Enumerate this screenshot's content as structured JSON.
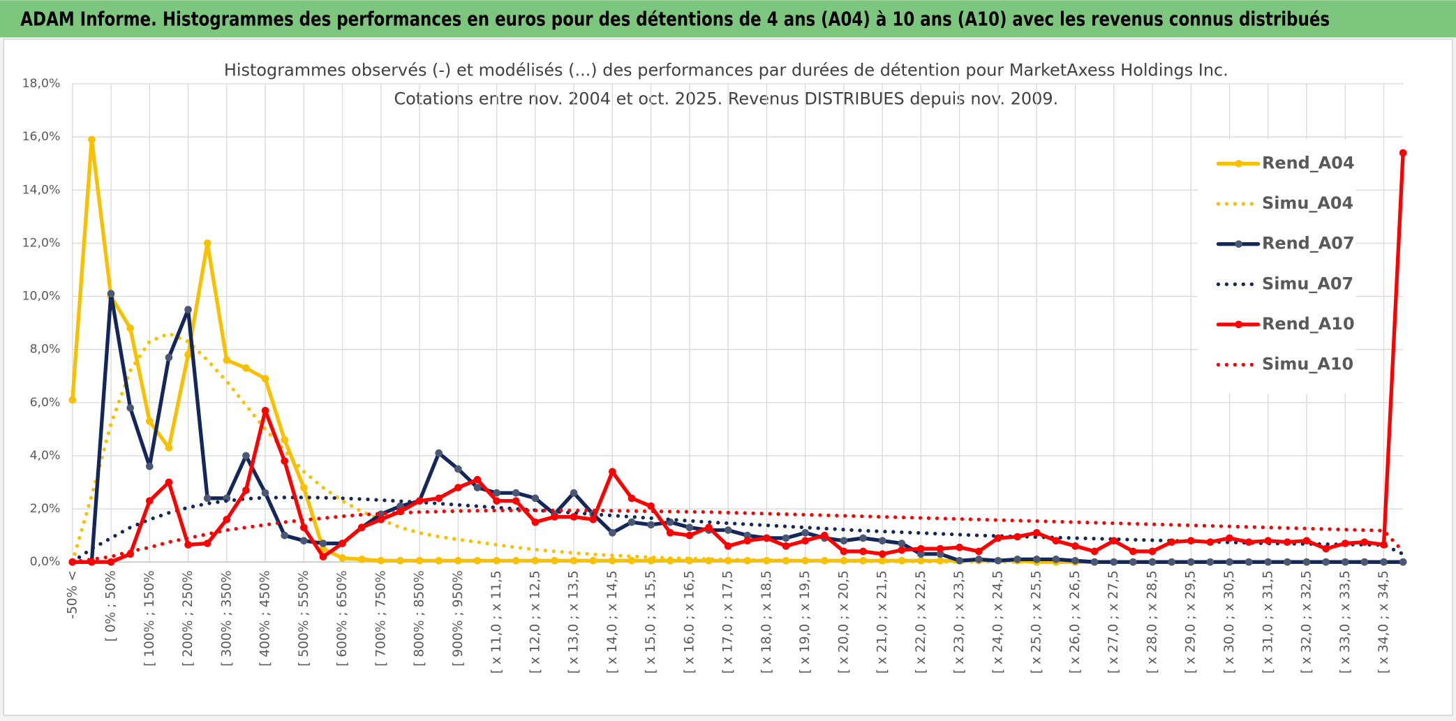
{
  "header": {
    "title": "ADAM Informe. Histogrammes des performances en euros pour des détentions de 4 ans (A04) à 10 ans (A10) avec les revenus connus distribués"
  },
  "chart_data": {
    "type": "line",
    "title": "Histogrammes observés (-) et modélisés (...) des performances par durées de détention pour MarketAxess Holdings Inc.",
    "subtitle": "Cotations entre nov. 2004 et oct. 2025. Revenus DISTRIBUES depuis nov. 2009.",
    "categories": [
      "-50% <",
      null,
      "[ 0% ; 50%",
      null,
      "[ 100% ; 150%",
      null,
      "[ 200% ; 250%",
      null,
      "[ 300% ; 350%",
      null,
      "[ 400% ; 450%",
      null,
      "[ 500% ; 550%",
      null,
      "[ 600% ; 650%",
      null,
      "[ 700% ; 750%",
      null,
      "[ 800% ; 850%",
      null,
      "[ 900% ; 950%",
      null,
      "[ x 11,0 ; x 11,5",
      null,
      "[ x 12,0 ; x 12,5",
      null,
      "[ x 13,0 ; x 13,5",
      null,
      "[ x 14,0 ; x 14,5",
      null,
      "[ x 15,0 ; x 15,5",
      null,
      "[ x 16,0 ; x 16,5",
      null,
      "[ x 17,0 ; x 17,5",
      null,
      "[ x 18,0 ; x 18,5",
      null,
      "[ x 19,0 ; x 19,5",
      null,
      "[ x 20,0 ; x 20,5",
      null,
      "[ x 21,0 ; x 21,5",
      null,
      "[ x 22,0 ; x 22,5",
      null,
      "[ x 23,0 ; x 23,5",
      null,
      "[ x 24,0 ; x 24,5",
      null,
      "[ x 25,0 ; x 25,5",
      null,
      "[ x 26,0 ; x 26,5",
      null,
      "[ x 27,0 ; x 27,5",
      null,
      "[ x 28,0 ; x 28,5",
      null,
      "[ x 29,0 ; x 29,5",
      null,
      "[ x 30,0 ; x 30,5",
      null,
      "[ x 31,0 ; x 31,5",
      null,
      "[ x 32,0 ; x 32,5",
      null,
      "[ x 33,0 ; x 33,5",
      null,
      "[ x 34,0 ; x 34,5",
      null
    ],
    "series": [
      {
        "name": "Rend_A04",
        "color": "#f8c000",
        "style": "solid",
        "values": [
          6.1,
          15.9,
          10.0,
          8.8,
          5.3,
          4.3,
          7.8,
          12.0,
          7.6,
          7.3,
          6.9,
          4.6,
          2.8,
          0.5,
          0.15,
          0.1,
          0.05,
          0.05,
          0.05,
          0.05,
          0.05,
          0.05,
          0.05,
          0.05,
          0.05,
          0.05,
          0.05,
          0.05,
          0.05,
          0.05,
          0.05,
          0.05,
          0.05,
          0.05,
          0.05,
          0.05,
          0.05,
          0.05,
          0.05,
          0.05,
          0.05,
          0.05,
          0.05,
          0.05,
          0.05,
          0.05,
          0.05,
          0.05,
          0.05,
          0.05,
          0,
          0,
          0,
          0,
          0,
          0,
          0,
          0,
          0,
          0,
          0,
          0,
          0,
          0,
          0,
          0,
          0,
          0,
          0,
          0
        ]
      },
      {
        "name": "Simu_A04",
        "color": "#f8c000",
        "style": "dotted",
        "values": [
          0,
          2.5,
          5.2,
          7.2,
          8.3,
          8.6,
          8.3,
          7.6,
          6.8,
          5.9,
          5.0,
          4.2,
          3.4,
          2.8,
          2.3,
          1.9,
          1.6,
          1.3,
          1.1,
          0.95,
          0.85,
          0.75,
          0.65,
          0.55,
          0.47,
          0.4,
          0.34,
          0.29,
          0.25,
          0.21,
          0.18,
          0.15,
          0.13,
          0.11,
          0.09,
          0.08,
          0.07,
          0.06,
          0.05,
          0.04,
          0.03,
          0.03,
          0.02,
          0.02,
          0.02,
          0.01,
          0.01,
          0.01,
          0.01,
          0.01,
          0,
          0,
          0,
          0,
          0,
          0,
          0,
          0,
          0,
          0,
          0,
          0,
          0,
          0,
          0,
          0,
          0,
          0,
          0,
          0
        ]
      },
      {
        "name": "Rend_A07",
        "color": "#14275a",
        "style": "solid",
        "values": [
          0,
          0,
          10.1,
          5.8,
          3.6,
          7.7,
          9.5,
          2.4,
          2.4,
          4.0,
          2.6,
          1.0,
          0.8,
          0.7,
          0.7,
          1.3,
          1.8,
          2.1,
          2.3,
          4.1,
          3.5,
          2.8,
          2.6,
          2.6,
          2.4,
          1.8,
          2.6,
          1.8,
          1.1,
          1.5,
          1.4,
          1.5,
          1.3,
          1.2,
          1.2,
          1.0,
          0.9,
          0.9,
          1.1,
          0.9,
          0.8,
          0.9,
          0.8,
          0.7,
          0.3,
          0.3,
          0.05,
          0.1,
          0.05,
          0.1,
          0.1,
          0.1,
          0.05,
          0,
          0,
          0,
          0,
          0,
          0,
          0,
          0,
          0,
          0,
          0,
          0,
          0,
          0,
          0,
          0,
          0
        ]
      },
      {
        "name": "Simu_A07",
        "color": "#14275a",
        "style": "dotted",
        "values": [
          0,
          0.5,
          0.9,
          1.3,
          1.6,
          1.85,
          2.05,
          2.2,
          2.3,
          2.38,
          2.42,
          2.43,
          2.43,
          2.42,
          2.4,
          2.37,
          2.33,
          2.29,
          2.25,
          2.2,
          2.15,
          2.1,
          2.05,
          2.0,
          1.95,
          1.9,
          1.85,
          1.8,
          1.75,
          1.7,
          1.65,
          1.6,
          1.55,
          1.5,
          1.46,
          1.42,
          1.38,
          1.34,
          1.3,
          1.26,
          1.22,
          1.18,
          1.15,
          1.12,
          1.09,
          1.06,
          1.03,
          1.0,
          0.98,
          0.96,
          0.94,
          0.92,
          0.9,
          0.88,
          0.86,
          0.84,
          0.82,
          0.8,
          0.78,
          0.76,
          0.74,
          0.72,
          0.7,
          0.69,
          0.68,
          0.67,
          0.66,
          0.65,
          0.64,
          0.3
        ]
      },
      {
        "name": "Rend_A10",
        "color": "#ff0000",
        "style": "solid",
        "values": [
          0,
          0,
          0,
          0.3,
          2.3,
          3.0,
          0.65,
          0.7,
          1.6,
          2.7,
          5.7,
          3.8,
          1.3,
          0.2,
          0.7,
          1.3,
          1.6,
          1.9,
          2.3,
          2.4,
          2.8,
          3.1,
          2.3,
          2.3,
          1.5,
          1.7,
          1.7,
          1.6,
          3.4,
          2.4,
          2.1,
          1.1,
          1.0,
          1.3,
          0.6,
          0.8,
          0.9,
          0.6,
          0.8,
          1.0,
          0.4,
          0.4,
          0.3,
          0.45,
          0.5,
          0.5,
          0.55,
          0.4,
          0.9,
          0.95,
          1.1,
          0.8,
          0.6,
          0.4,
          0.8,
          0.4,
          0.4,
          0.75,
          0.8,
          0.75,
          0.9,
          0.75,
          0.8,
          0.75,
          0.8,
          0.5,
          0.7,
          0.75,
          0.65,
          15.4
        ]
      },
      {
        "name": "Simu_A10",
        "color": "#ff0000",
        "style": "dotted",
        "values": [
          0,
          0.1,
          0.2,
          0.4,
          0.55,
          0.75,
          0.9,
          1.05,
          1.2,
          1.3,
          1.4,
          1.5,
          1.58,
          1.65,
          1.72,
          1.78,
          1.82,
          1.85,
          1.88,
          1.9,
          1.92,
          1.93,
          1.94,
          1.94,
          1.94,
          1.94,
          1.94,
          1.94,
          1.93,
          1.92,
          1.91,
          1.9,
          1.89,
          1.88,
          1.86,
          1.84,
          1.82,
          1.8,
          1.78,
          1.76,
          1.74,
          1.72,
          1.7,
          1.68,
          1.66,
          1.64,
          1.62,
          1.6,
          1.58,
          1.56,
          1.54,
          1.52,
          1.5,
          1.48,
          1.46,
          1.44,
          1.42,
          1.4,
          1.38,
          1.36,
          1.34,
          1.32,
          1.3,
          1.28,
          1.26,
          1.24,
          1.22,
          1.2,
          1.18,
          0.4
        ]
      }
    ],
    "ylim": [
      0,
      18
    ],
    "yticks": [
      {
        "value": 0,
        "label": "0,0%"
      },
      {
        "value": 2,
        "label": "2,0%"
      },
      {
        "value": 4,
        "label": "4,0%"
      },
      {
        "value": 6,
        "label": "6,0%"
      },
      {
        "value": 8,
        "label": "8,0%"
      },
      {
        "value": 10,
        "label": "10,0%"
      },
      {
        "value": 12,
        "label": "12,0%"
      },
      {
        "value": 14,
        "label": "14,0%"
      },
      {
        "value": 16,
        "label": "16,0%"
      },
      {
        "value": 18,
        "label": "18,0%"
      }
    ],
    "grid": true,
    "legend": "right"
  }
}
